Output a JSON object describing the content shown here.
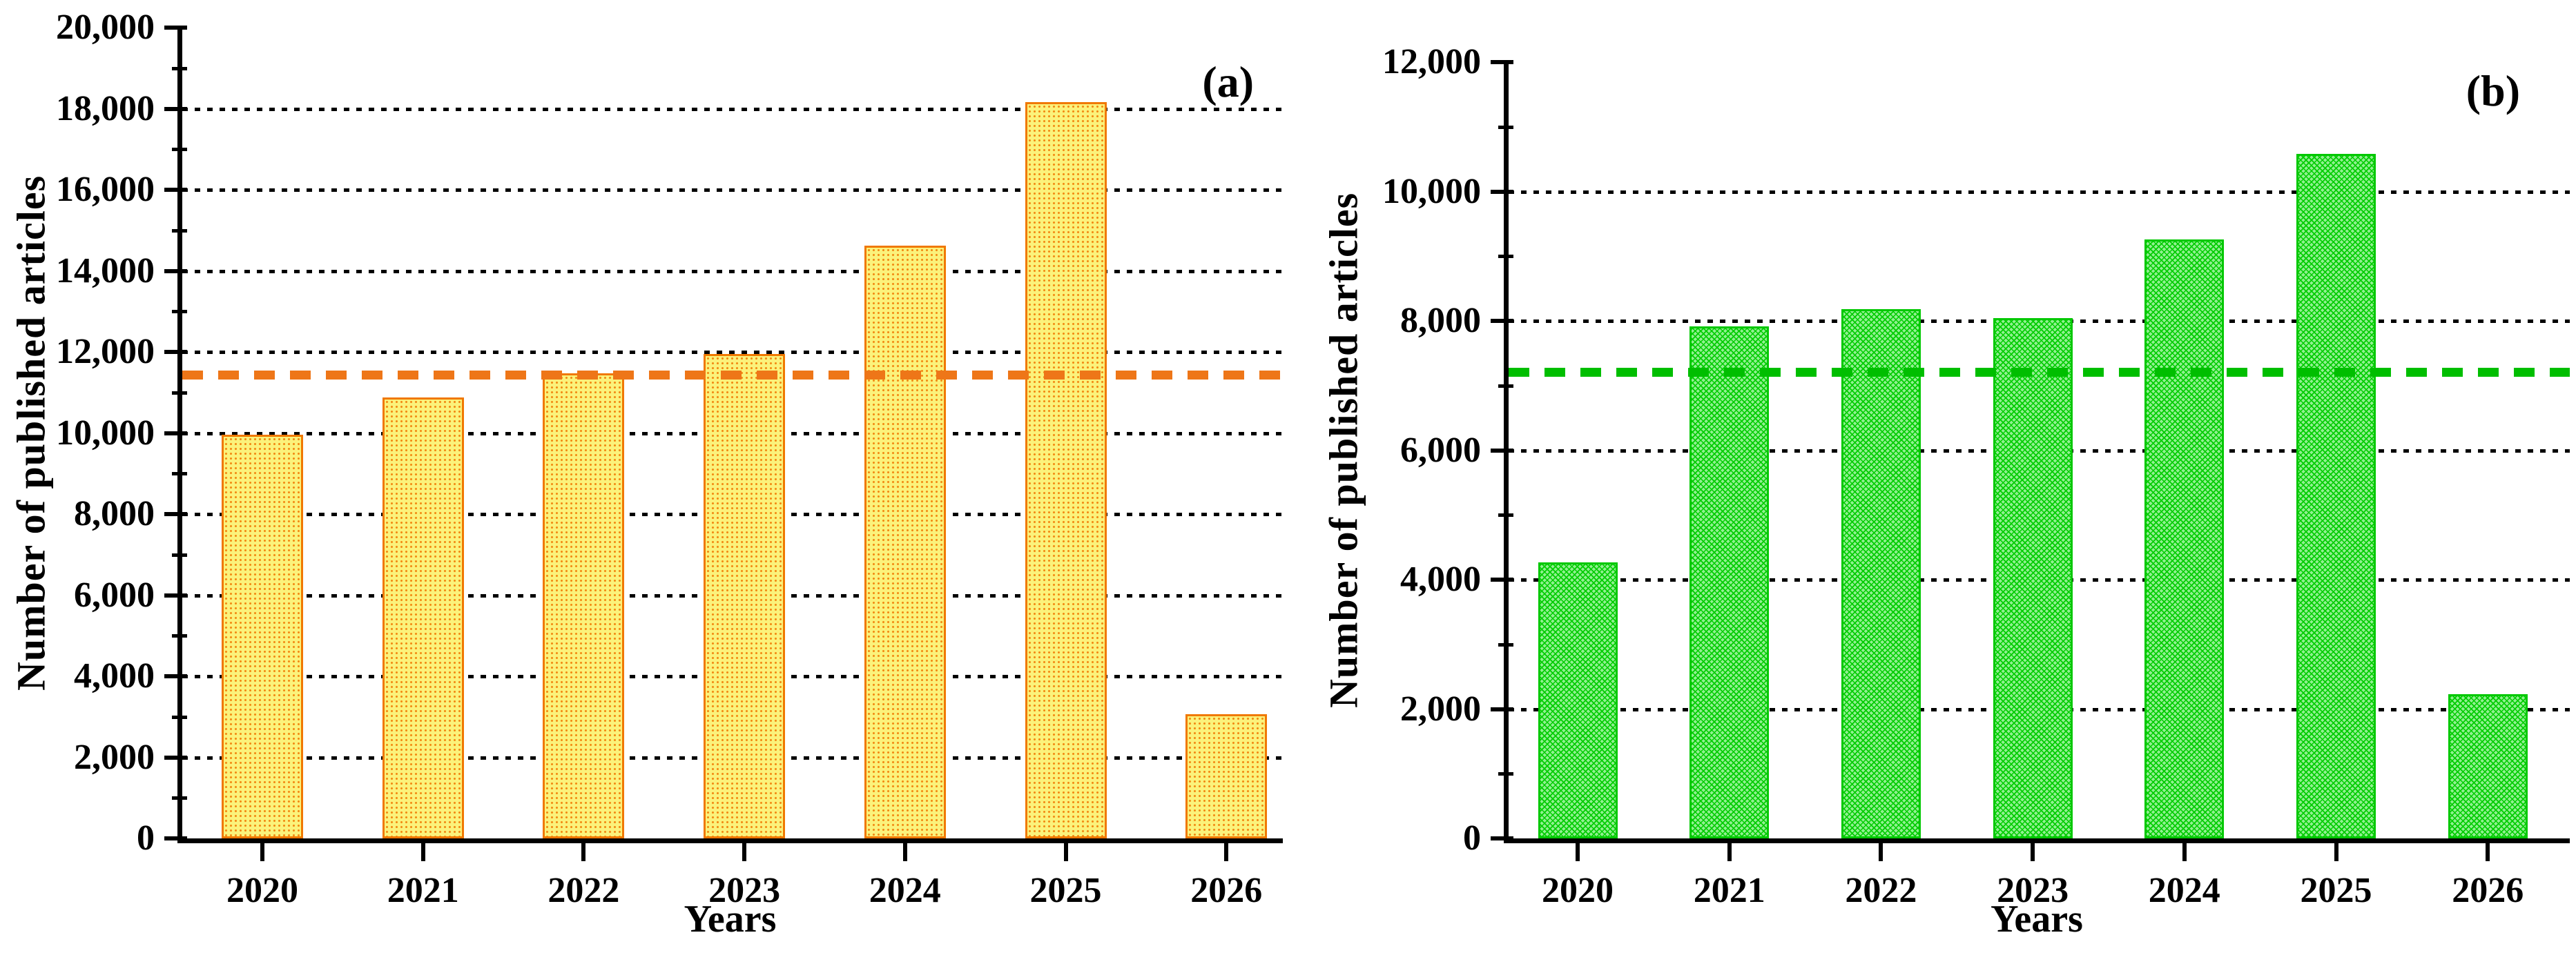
{
  "figure": {
    "background": "#FFFFFF",
    "description_visible_text_only": true
  },
  "chart_data": [
    {
      "id": "a",
      "type": "bar",
      "panel_label": "(a)",
      "title": "",
      "xlabel": "Years",
      "ylabel": "Number of published articles",
      "categories": [
        "2020",
        "2021",
        "2022",
        "2023",
        "2024",
        "2025",
        "2026"
      ],
      "values": [
        9950,
        10870,
        11470,
        11950,
        14620,
        18160,
        3060
      ],
      "mean_line": {
        "value": 11440,
        "color": "#EE7618",
        "style": "dashed"
      },
      "ylim": [
        0,
        20000
      ],
      "ytick_step": 2000,
      "minor_tick_step": 1000,
      "yticks": [
        {
          "v": 0,
          "label": "0"
        },
        {
          "v": 2000,
          "label": "2,000"
        },
        {
          "v": 4000,
          "label": "4,000"
        },
        {
          "v": 6000,
          "label": "6,000"
        },
        {
          "v": 8000,
          "label": "8,000"
        },
        {
          "v": 10000,
          "label": "10,000"
        },
        {
          "v": 12000,
          "label": "12,000"
        },
        {
          "v": 14000,
          "label": "14,000"
        },
        {
          "v": 16000,
          "label": "16,000"
        },
        {
          "v": 18000,
          "label": "18,000"
        },
        {
          "v": 20000,
          "label": "20,000"
        }
      ],
      "grid": {
        "show": true,
        "style": "dotted",
        "color": "#000000",
        "at": "major-ticks-only"
      },
      "legend": {
        "show": false
      },
      "bar_style": {
        "fill": "#FBF27B",
        "pattern": "dot-grid",
        "pattern_color": "#F28A12",
        "border": "#F07800"
      }
    },
    {
      "id": "b",
      "type": "bar",
      "panel_label": "(b)",
      "title": "",
      "xlabel": "Years",
      "ylabel": "Number of published articles",
      "categories": [
        "2020",
        "2021",
        "2022",
        "2023",
        "2024",
        "2025",
        "2026"
      ],
      "values": [
        4270,
        7910,
        8180,
        8040,
        9260,
        10580,
        2230
      ],
      "mean_line": {
        "value": 7210,
        "color": "#00BE00",
        "style": "dashed"
      },
      "ylim": [
        0,
        12000
      ],
      "ytick_step": 2000,
      "minor_tick_step": 1000,
      "yticks": [
        {
          "v": 0,
          "label": "0"
        },
        {
          "v": 2000,
          "label": "2,000"
        },
        {
          "v": 4000,
          "label": "4,000"
        },
        {
          "v": 6000,
          "label": "6,000"
        },
        {
          "v": 8000,
          "label": "8,000"
        },
        {
          "v": 10000,
          "label": "10,000"
        },
        {
          "v": 12000,
          "label": "12,000"
        }
      ],
      "grid": {
        "show": true,
        "style": "dotted",
        "color": "#000000",
        "at": "major-ticks-only"
      },
      "legend": {
        "show": false
      },
      "bar_style": {
        "fill": "#90F090",
        "pattern": "crosshatch",
        "pattern_color": "#00CC00",
        "border": "#00C800"
      }
    }
  ]
}
